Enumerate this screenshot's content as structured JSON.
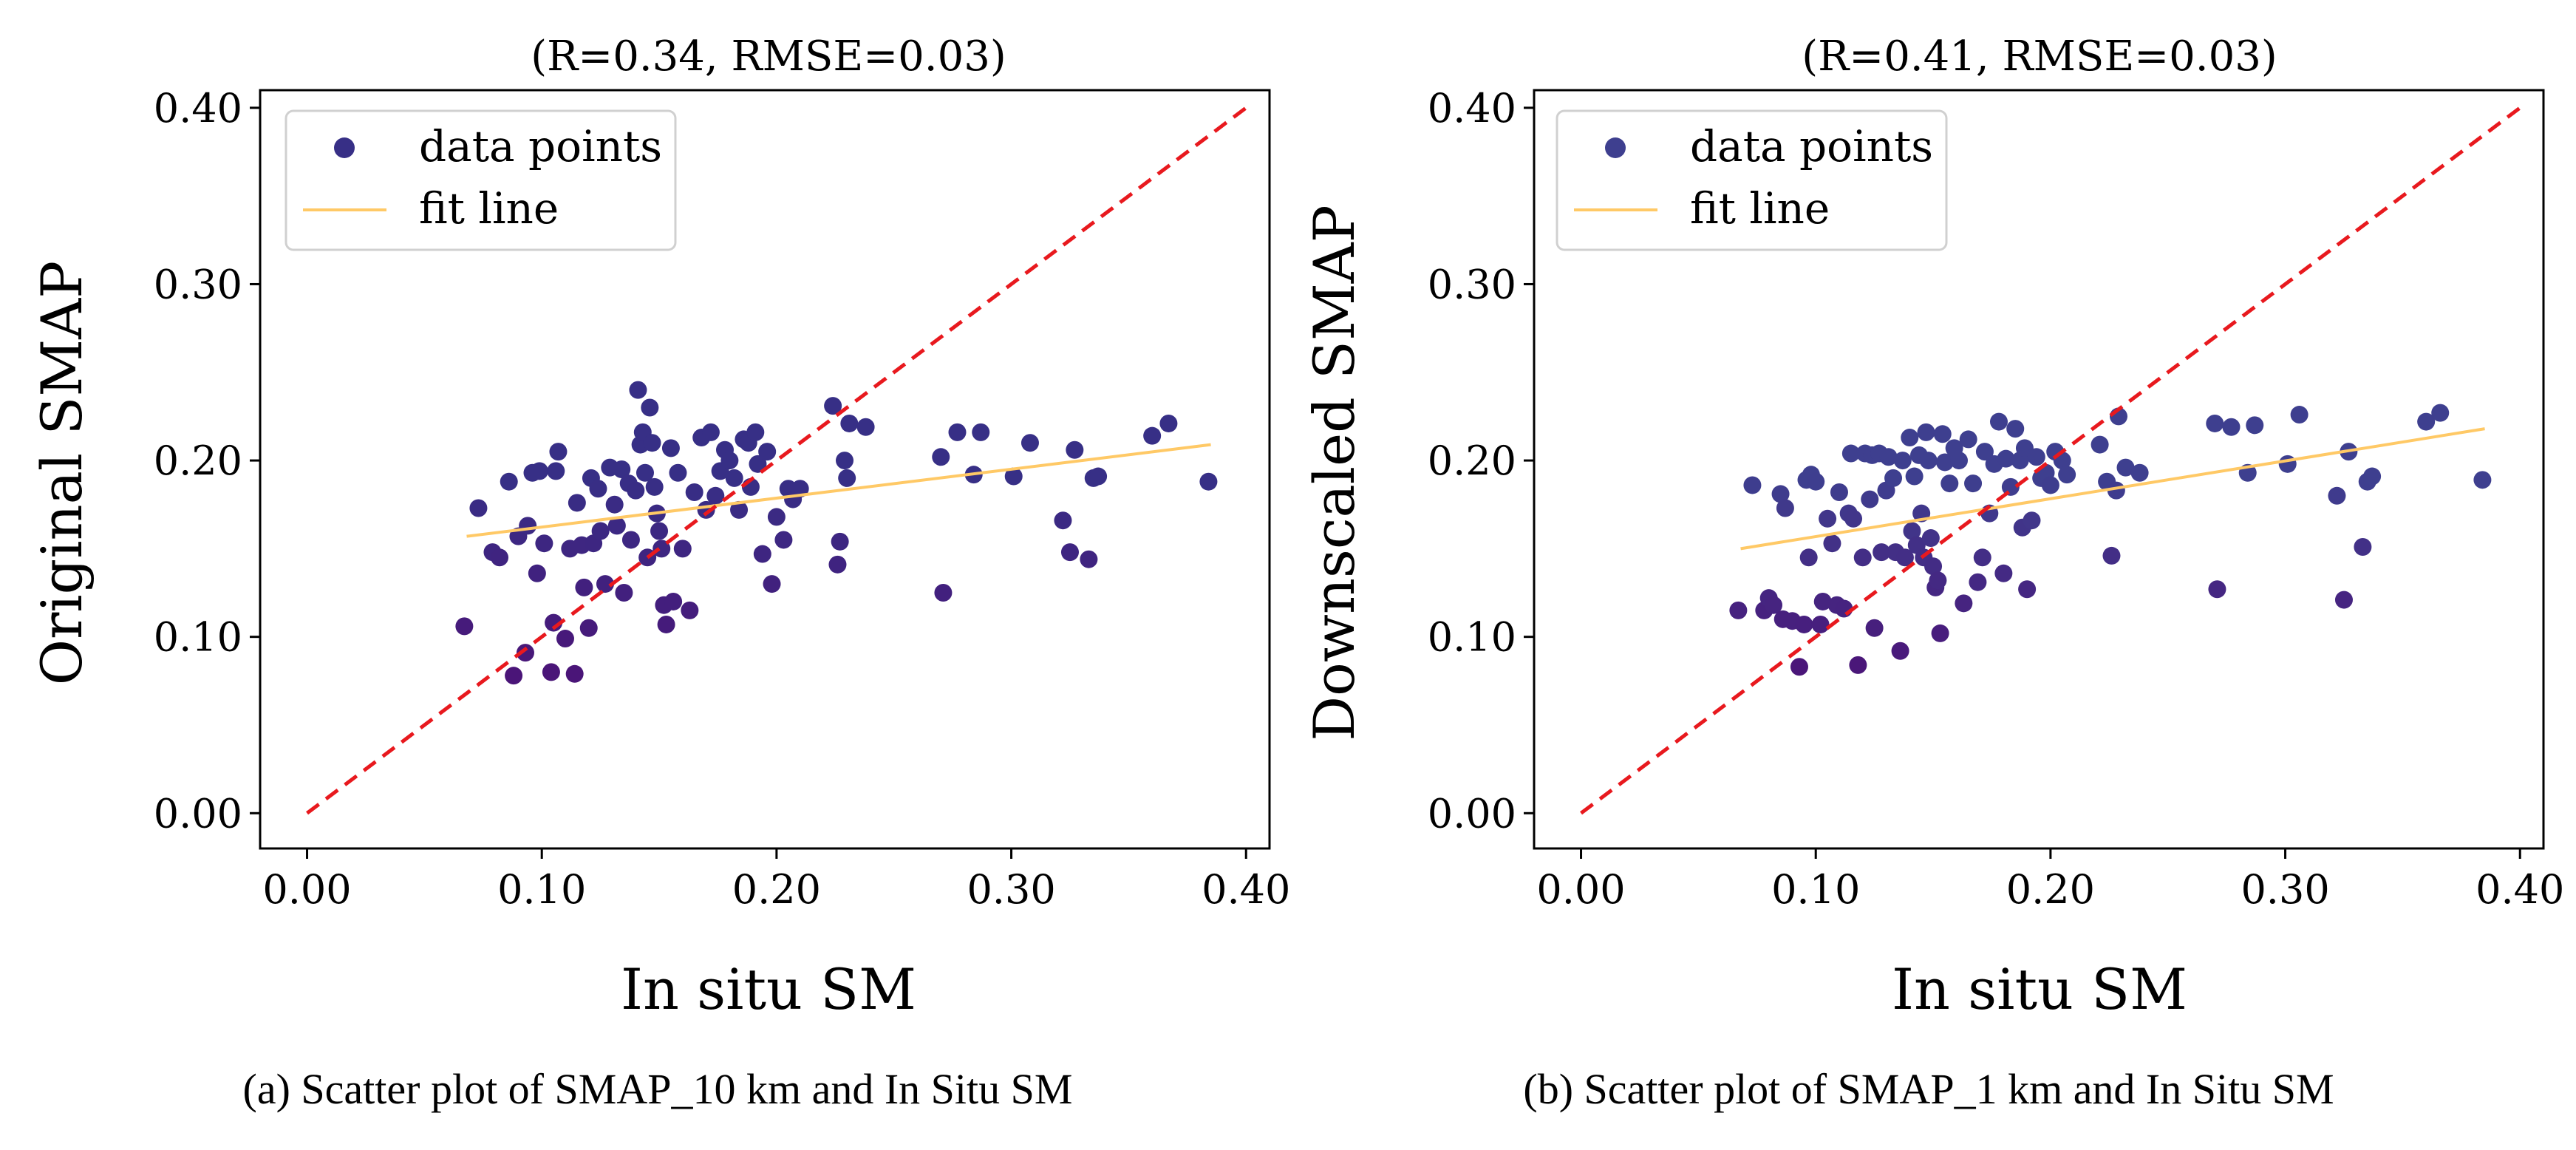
{
  "colors": {
    "point_a": "#372F86",
    "point_b": "#3E3F8F",
    "point_low": "#4A1578",
    "fit_line": "#FFC966",
    "identity_line": "#E8191E",
    "axes": "#000000",
    "background": "#FFFFFF"
  },
  "chart_data": [
    {
      "type": "scatter",
      "title": "(R=0.34, RMSE=0.03)",
      "xlabel": "In situ SM",
      "ylabel": "Original SMAP",
      "xlim": [
        -0.02,
        0.41
      ],
      "ylim": [
        -0.02,
        0.41
      ],
      "xticks": [
        "0.00",
        "0.10",
        "0.20",
        "0.30",
        "0.40"
      ],
      "yticks": [
        "0.00",
        "0.10",
        "0.20",
        "0.30",
        "0.40"
      ],
      "tick_values": [
        0.0,
        0.1,
        0.2,
        0.3,
        0.4
      ],
      "legend": {
        "position": "upper-left",
        "points_label": "data points",
        "fit_label": "fit line"
      },
      "caption": "(a) Scatter plot of SMAP_10 km and In Situ SM",
      "fit_line": {
        "x": [
          0.068,
          0.385
        ],
        "y": [
          0.157,
          0.209
        ]
      },
      "identity_line": {
        "x": [
          0.0,
          0.4
        ],
        "y": [
          0.0,
          0.4
        ]
      },
      "points": [
        [
          0.067,
          0.106
        ],
        [
          0.073,
          0.173
        ],
        [
          0.079,
          0.148
        ],
        [
          0.082,
          0.145
        ],
        [
          0.086,
          0.188
        ],
        [
          0.088,
          0.078
        ],
        [
          0.09,
          0.157
        ],
        [
          0.093,
          0.091
        ],
        [
          0.094,
          0.163
        ],
        [
          0.096,
          0.193
        ],
        [
          0.098,
          0.136
        ],
        [
          0.099,
          0.194
        ],
        [
          0.101,
          0.153
        ],
        [
          0.104,
          0.08
        ],
        [
          0.105,
          0.108
        ],
        [
          0.106,
          0.194
        ],
        [
          0.107,
          0.205
        ],
        [
          0.11,
          0.099
        ],
        [
          0.112,
          0.15
        ],
        [
          0.114,
          0.079
        ],
        [
          0.115,
          0.176
        ],
        [
          0.117,
          0.152
        ],
        [
          0.118,
          0.128
        ],
        [
          0.12,
          0.105
        ],
        [
          0.121,
          0.19
        ],
        [
          0.122,
          0.153
        ],
        [
          0.124,
          0.184
        ],
        [
          0.125,
          0.16
        ],
        [
          0.127,
          0.13
        ],
        [
          0.129,
          0.196
        ],
        [
          0.131,
          0.175
        ],
        [
          0.132,
          0.163
        ],
        [
          0.134,
          0.195
        ],
        [
          0.135,
          0.125
        ],
        [
          0.137,
          0.187
        ],
        [
          0.138,
          0.155
        ],
        [
          0.14,
          0.183
        ],
        [
          0.141,
          0.24
        ],
        [
          0.142,
          0.209
        ],
        [
          0.143,
          0.216
        ],
        [
          0.144,
          0.193
        ],
        [
          0.145,
          0.145
        ],
        [
          0.146,
          0.23
        ],
        [
          0.147,
          0.21
        ],
        [
          0.148,
          0.185
        ],
        [
          0.149,
          0.17
        ],
        [
          0.15,
          0.16
        ],
        [
          0.151,
          0.15
        ],
        [
          0.152,
          0.118
        ],
        [
          0.153,
          0.107
        ],
        [
          0.155,
          0.207
        ],
        [
          0.156,
          0.12
        ],
        [
          0.158,
          0.193
        ],
        [
          0.16,
          0.15
        ],
        [
          0.163,
          0.115
        ],
        [
          0.165,
          0.182
        ],
        [
          0.168,
          0.213
        ],
        [
          0.17,
          0.172
        ],
        [
          0.172,
          0.216
        ],
        [
          0.174,
          0.18
        ],
        [
          0.176,
          0.194
        ],
        [
          0.178,
          0.206
        ],
        [
          0.18,
          0.2
        ],
        [
          0.182,
          0.19
        ],
        [
          0.184,
          0.172
        ],
        [
          0.186,
          0.212
        ],
        [
          0.188,
          0.21
        ],
        [
          0.189,
          0.185
        ],
        [
          0.191,
          0.216
        ],
        [
          0.192,
          0.198
        ],
        [
          0.194,
          0.147
        ],
        [
          0.196,
          0.205
        ],
        [
          0.198,
          0.13
        ],
        [
          0.2,
          0.168
        ],
        [
          0.203,
          0.155
        ],
        [
          0.205,
          0.184
        ],
        [
          0.207,
          0.178
        ],
        [
          0.21,
          0.184
        ],
        [
          0.224,
          0.231
        ],
        [
          0.226,
          0.141
        ],
        [
          0.227,
          0.154
        ],
        [
          0.229,
          0.2
        ],
        [
          0.23,
          0.19
        ],
        [
          0.231,
          0.221
        ],
        [
          0.238,
          0.219
        ],
        [
          0.27,
          0.202
        ],
        [
          0.271,
          0.125
        ],
        [
          0.277,
          0.216
        ],
        [
          0.284,
          0.192
        ],
        [
          0.287,
          0.216
        ],
        [
          0.301,
          0.191
        ],
        [
          0.308,
          0.21
        ],
        [
          0.322,
          0.166
        ],
        [
          0.325,
          0.148
        ],
        [
          0.327,
          0.206
        ],
        [
          0.333,
          0.144
        ],
        [
          0.335,
          0.19
        ],
        [
          0.337,
          0.191
        ],
        [
          0.36,
          0.214
        ],
        [
          0.367,
          0.221
        ],
        [
          0.384,
          0.188
        ]
      ]
    },
    {
      "type": "scatter",
      "title": "(R=0.41, RMSE=0.03)",
      "xlabel": "In situ SM",
      "ylabel": "Downscaled SMAP",
      "xlim": [
        -0.02,
        0.41
      ],
      "ylim": [
        -0.02,
        0.41
      ],
      "xticks": [
        "0.00",
        "0.10",
        "0.20",
        "0.30",
        "0.40"
      ],
      "yticks": [
        "0.00",
        "0.10",
        "0.20",
        "0.30",
        "0.40"
      ],
      "tick_values": [
        0.0,
        0.1,
        0.2,
        0.3,
        0.4
      ],
      "legend": {
        "position": "upper-left",
        "points_label": "data points",
        "fit_label": "fit line"
      },
      "caption": "(b) Scatter plot of SMAP_1 km and In Situ SM",
      "fit_line": {
        "x": [
          0.068,
          0.385
        ],
        "y": [
          0.15,
          0.218
        ]
      },
      "identity_line": {
        "x": [
          0.0,
          0.4
        ],
        "y": [
          0.0,
          0.4
        ]
      },
      "points": [
        [
          0.067,
          0.115
        ],
        [
          0.073,
          0.186
        ],
        [
          0.078,
          0.115
        ],
        [
          0.08,
          0.122
        ],
        [
          0.082,
          0.118
        ],
        [
          0.085,
          0.181
        ],
        [
          0.086,
          0.11
        ],
        [
          0.087,
          0.173
        ],
        [
          0.09,
          0.109
        ],
        [
          0.093,
          0.083
        ],
        [
          0.095,
          0.107
        ],
        [
          0.096,
          0.189
        ],
        [
          0.097,
          0.145
        ],
        [
          0.098,
          0.192
        ],
        [
          0.1,
          0.188
        ],
        [
          0.102,
          0.107
        ],
        [
          0.103,
          0.12
        ],
        [
          0.105,
          0.167
        ],
        [
          0.107,
          0.153
        ],
        [
          0.109,
          0.118
        ],
        [
          0.11,
          0.182
        ],
        [
          0.112,
          0.116
        ],
        [
          0.114,
          0.17
        ],
        [
          0.115,
          0.204
        ],
        [
          0.116,
          0.167
        ],
        [
          0.118,
          0.084
        ],
        [
          0.12,
          0.145
        ],
        [
          0.121,
          0.204
        ],
        [
          0.123,
          0.178
        ],
        [
          0.124,
          0.203
        ],
        [
          0.125,
          0.105
        ],
        [
          0.127,
          0.204
        ],
        [
          0.128,
          0.148
        ],
        [
          0.13,
          0.183
        ],
        [
          0.131,
          0.202
        ],
        [
          0.133,
          0.19
        ],
        [
          0.134,
          0.148
        ],
        [
          0.136,
          0.092
        ],
        [
          0.137,
          0.2
        ],
        [
          0.138,
          0.145
        ],
        [
          0.14,
          0.213
        ],
        [
          0.141,
          0.16
        ],
        [
          0.142,
          0.191
        ],
        [
          0.143,
          0.152
        ],
        [
          0.144,
          0.203
        ],
        [
          0.145,
          0.17
        ],
        [
          0.146,
          0.145
        ],
        [
          0.147,
          0.216
        ],
        [
          0.148,
          0.2
        ],
        [
          0.149,
          0.156
        ],
        [
          0.15,
          0.14
        ],
        [
          0.151,
          0.128
        ],
        [
          0.152,
          0.132
        ],
        [
          0.153,
          0.102
        ],
        [
          0.154,
          0.215
        ],
        [
          0.155,
          0.199
        ],
        [
          0.157,
          0.187
        ],
        [
          0.159,
          0.207
        ],
        [
          0.161,
          0.2
        ],
        [
          0.163,
          0.119
        ],
        [
          0.165,
          0.212
        ],
        [
          0.167,
          0.187
        ],
        [
          0.169,
          0.131
        ],
        [
          0.171,
          0.145
        ],
        [
          0.172,
          0.205
        ],
        [
          0.174,
          0.17
        ],
        [
          0.176,
          0.198
        ],
        [
          0.178,
          0.222
        ],
        [
          0.18,
          0.136
        ],
        [
          0.181,
          0.201
        ],
        [
          0.183,
          0.185
        ],
        [
          0.185,
          0.218
        ],
        [
          0.187,
          0.2
        ],
        [
          0.188,
          0.162
        ],
        [
          0.189,
          0.207
        ],
        [
          0.19,
          0.127
        ],
        [
          0.192,
          0.166
        ],
        [
          0.194,
          0.202
        ],
        [
          0.196,
          0.19
        ],
        [
          0.198,
          0.193
        ],
        [
          0.2,
          0.186
        ],
        [
          0.202,
          0.205
        ],
        [
          0.205,
          0.2
        ],
        [
          0.207,
          0.192
        ],
        [
          0.221,
          0.209
        ],
        [
          0.224,
          0.188
        ],
        [
          0.226,
          0.146
        ],
        [
          0.228,
          0.183
        ],
        [
          0.229,
          0.225
        ],
        [
          0.232,
          0.196
        ],
        [
          0.238,
          0.193
        ],
        [
          0.27,
          0.221
        ],
        [
          0.271,
          0.127
        ],
        [
          0.277,
          0.219
        ],
        [
          0.284,
          0.193
        ],
        [
          0.287,
          0.22
        ],
        [
          0.301,
          0.198
        ],
        [
          0.306,
          0.226
        ],
        [
          0.322,
          0.18
        ],
        [
          0.325,
          0.121
        ],
        [
          0.327,
          0.205
        ],
        [
          0.333,
          0.151
        ],
        [
          0.335,
          0.188
        ],
        [
          0.337,
          0.191
        ],
        [
          0.36,
          0.222
        ],
        [
          0.366,
          0.227
        ],
        [
          0.384,
          0.189
        ]
      ]
    }
  ]
}
